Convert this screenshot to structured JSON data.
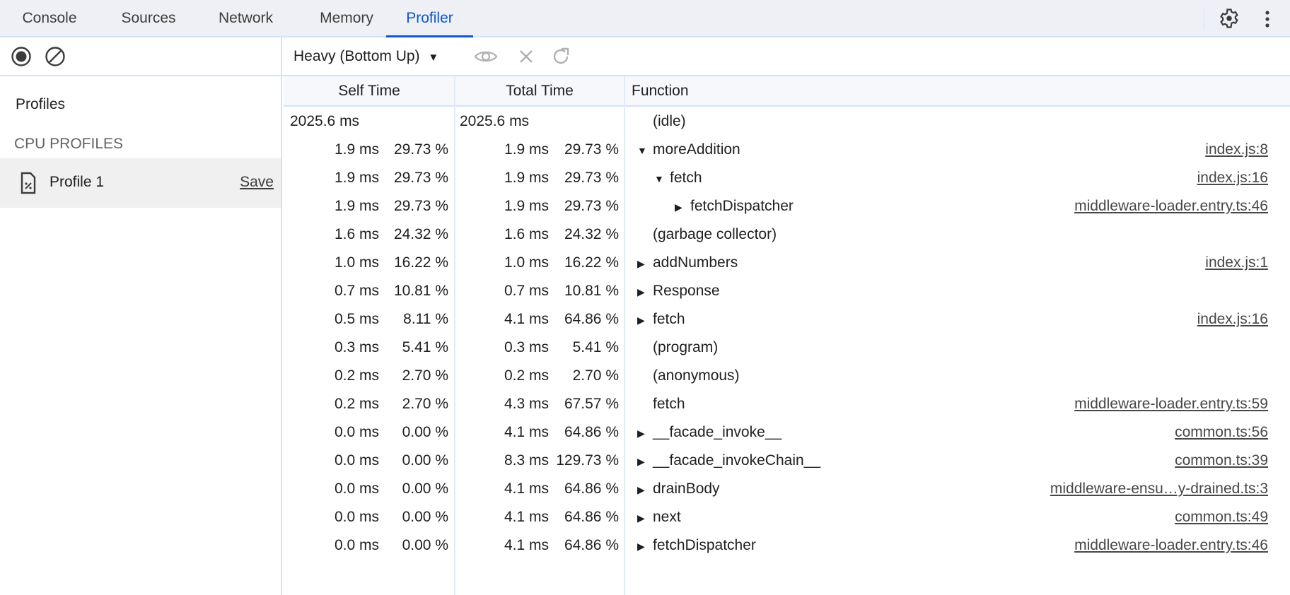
{
  "tabs": [
    {
      "label": "Console",
      "active": false
    },
    {
      "label": "Sources",
      "active": false
    },
    {
      "label": "Network",
      "active": false
    },
    {
      "label": "Memory",
      "active": false
    },
    {
      "label": "Profiler",
      "active": true
    }
  ],
  "toolbar": {
    "view_select": "Heavy (Bottom Up)",
    "icons": [
      "record-icon",
      "clear-icon",
      "focus-eye-icon",
      "exclude-x-icon",
      "restore-reload-icon"
    ]
  },
  "sidebar": {
    "title": "Profiles",
    "section": "CPU PROFILES",
    "profile": {
      "label": "Profile 1",
      "save": "Save"
    }
  },
  "columns": {
    "self": "Self Time",
    "total": "Total Time",
    "function": "Function"
  },
  "rows": [
    {
      "self": "2025.6 ms",
      "self_pct": "",
      "total": "2025.6 ms",
      "total_pct": "",
      "name": "(idle)",
      "depth": 0,
      "arrow": "none",
      "link": ""
    },
    {
      "self": "1.9 ms",
      "self_pct": "29.73 %",
      "total": "1.9 ms",
      "total_pct": "29.73 %",
      "name": "moreAddition",
      "depth": 0,
      "arrow": "expanded",
      "link": "index.js:8"
    },
    {
      "self": "1.9 ms",
      "self_pct": "29.73 %",
      "total": "1.9 ms",
      "total_pct": "29.73 %",
      "name": "fetch",
      "depth": 1,
      "arrow": "expanded",
      "link": "index.js:16"
    },
    {
      "self": "1.9 ms",
      "self_pct": "29.73 %",
      "total": "1.9 ms",
      "total_pct": "29.73 %",
      "name": "fetchDispatcher",
      "depth": 2,
      "arrow": "collapsed",
      "link": "middleware-loader.entry.ts:46"
    },
    {
      "self": "1.6 ms",
      "self_pct": "24.32 %",
      "total": "1.6 ms",
      "total_pct": "24.32 %",
      "name": "(garbage collector)",
      "depth": 0,
      "arrow": "none",
      "link": ""
    },
    {
      "self": "1.0 ms",
      "self_pct": "16.22 %",
      "total": "1.0 ms",
      "total_pct": "16.22 %",
      "name": "addNumbers",
      "depth": 0,
      "arrow": "collapsed",
      "link": "index.js:1"
    },
    {
      "self": "0.7 ms",
      "self_pct": "10.81 %",
      "total": "0.7 ms",
      "total_pct": "10.81 %",
      "name": "Response",
      "depth": 0,
      "arrow": "collapsed",
      "link": ""
    },
    {
      "self": "0.5 ms",
      "self_pct": "8.11 %",
      "total": "4.1 ms",
      "total_pct": "64.86 %",
      "name": "fetch",
      "depth": 0,
      "arrow": "collapsed",
      "link": "index.js:16"
    },
    {
      "self": "0.3 ms",
      "self_pct": "5.41 %",
      "total": "0.3 ms",
      "total_pct": "5.41 %",
      "name": "(program)",
      "depth": 0,
      "arrow": "none",
      "link": ""
    },
    {
      "self": "0.2 ms",
      "self_pct": "2.70 %",
      "total": "0.2 ms",
      "total_pct": "2.70 %",
      "name": "(anonymous)",
      "depth": 0,
      "arrow": "none",
      "link": ""
    },
    {
      "self": "0.2 ms",
      "self_pct": "2.70 %",
      "total": "4.3 ms",
      "total_pct": "67.57 %",
      "name": "fetch",
      "depth": 0,
      "arrow": "none",
      "link": "middleware-loader.entry.ts:59"
    },
    {
      "self": "0.0 ms",
      "self_pct": "0.00 %",
      "total": "4.1 ms",
      "total_pct": "64.86 %",
      "name": "__facade_invoke__",
      "depth": 0,
      "arrow": "collapsed",
      "link": "common.ts:56"
    },
    {
      "self": "0.0 ms",
      "self_pct": "0.00 %",
      "total": "8.3 ms",
      "total_pct": "129.73 %",
      "name": "__facade_invokeChain__",
      "depth": 0,
      "arrow": "collapsed",
      "link": "common.ts:39"
    },
    {
      "self": "0.0 ms",
      "self_pct": "0.00 %",
      "total": "4.1 ms",
      "total_pct": "64.86 %",
      "name": "drainBody",
      "depth": 0,
      "arrow": "collapsed",
      "link": "middleware-ensu…y-drained.ts:3"
    },
    {
      "self": "0.0 ms",
      "self_pct": "0.00 %",
      "total": "4.1 ms",
      "total_pct": "64.86 %",
      "name": "next",
      "depth": 0,
      "arrow": "collapsed",
      "link": "common.ts:49"
    },
    {
      "self": "0.0 ms",
      "self_pct": "0.00 %",
      "total": "4.1 ms",
      "total_pct": "64.86 %",
      "name": "fetchDispatcher",
      "depth": 0,
      "arrow": "collapsed",
      "link": "middleware-loader.entry.ts:46"
    }
  ],
  "colors": {
    "accent": "#0b57d0",
    "border": "#d3e3fd",
    "tabbar_bg": "#eef0f5",
    "selected_bg": "#f0f0f0"
  }
}
